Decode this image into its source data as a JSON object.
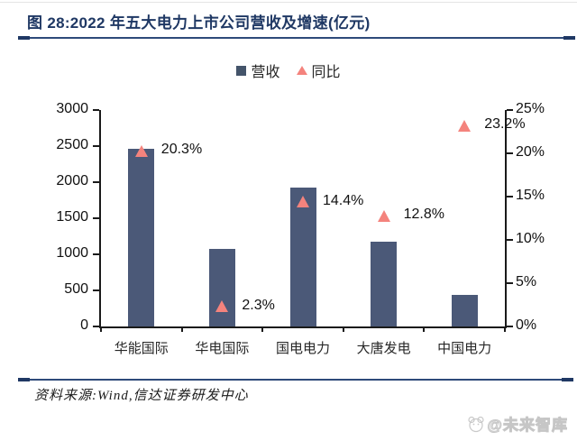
{
  "figure": {
    "title": "图 28:2022 年五大电力上市公司营收及增速(亿元)",
    "source": "资料来源:Wind,信达证券研发中心",
    "watermark": "@未来智库"
  },
  "colors": {
    "title_navy": "#1f3864",
    "bar": "#4b5978",
    "triangle": "#f4837d",
    "axis": "#1a1a1a"
  },
  "legend": [
    {
      "label": "营收",
      "marker": "square",
      "color": "#44546a"
    },
    {
      "label": "同比",
      "marker": "triangle",
      "color": "#f4837d"
    }
  ],
  "chart_data": {
    "type": "bar",
    "subtype": "bar-with-triangle-markers-dual-axis",
    "title": "2022 年五大电力上市公司营收及增速(亿元)",
    "categories": [
      "华能国际",
      "华电国际",
      "国电电力",
      "大唐发电",
      "中国电力"
    ],
    "series": [
      {
        "name": "营收",
        "type": "bar",
        "axis": "left",
        "values": [
          2460,
          1070,
          1920,
          1170,
          440
        ],
        "color": "#4b5978"
      },
      {
        "name": "同比",
        "type": "scatter",
        "marker": "triangle-up",
        "axis": "right",
        "values": [
          20.3,
          2.3,
          14.4,
          12.8,
          23.2
        ],
        "labels": [
          "20.3%",
          "2.3%",
          "14.4%",
          "12.8%",
          "23.2%"
        ],
        "color": "#f4837d"
      }
    ],
    "left_axis": {
      "min": 0,
      "max": 3000,
      "ticks": [
        "0",
        "500",
        "1000",
        "1500",
        "2000",
        "2500",
        "3000"
      ]
    },
    "right_axis": {
      "min": 0,
      "max": 25,
      "ticks": [
        "0%",
        "5%",
        "10%",
        "15%",
        "20%",
        "25%"
      ]
    },
    "grid": false,
    "legend_position": "top-center",
    "xlabel": "",
    "ylabel": ""
  }
}
